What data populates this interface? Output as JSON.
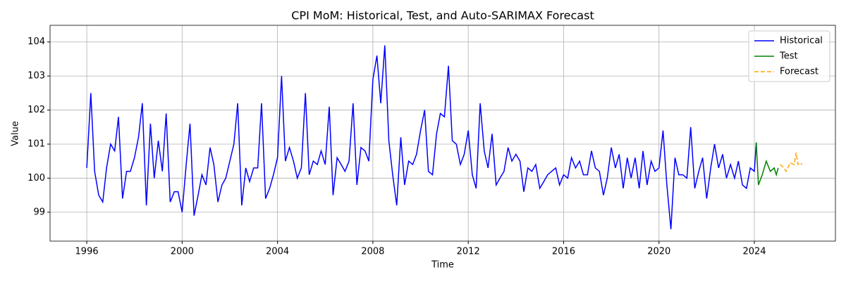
{
  "chart_data": {
    "type": "line",
    "title": "CPI MoM: Historical, Test, and Auto-SARIMAX Forecast",
    "xlabel": "Time",
    "ylabel": "Value",
    "xlim": [
      1994.46,
      2027.4
    ],
    "ylim": [
      98.15,
      104.49
    ],
    "xticks": [
      1996,
      2000,
      2004,
      2008,
      2012,
      2016,
      2020,
      2024
    ],
    "yticks": [
      99,
      100,
      101,
      102,
      103,
      104
    ],
    "grid": true,
    "legend": "upper right",
    "series": [
      {
        "name": "Historical",
        "color": "#0000ff",
        "linestyle": "solid",
        "x": [
          1996,
          1996.17,
          1996.33,
          1996.5,
          1996.67,
          1996.83,
          1997,
          1997.17,
          1997.33,
          1997.5,
          1997.67,
          1997.83,
          1998,
          1998.17,
          1998.33,
          1998.5,
          1998.67,
          1998.83,
          1999,
          1999.17,
          1999.33,
          1999.5,
          1999.67,
          1999.83,
          2000,
          2000.17,
          2000.33,
          2000.5,
          2000.67,
          2000.83,
          2001,
          2001.17,
          2001.33,
          2001.5,
          2001.67,
          2001.83,
          2002,
          2002.17,
          2002.33,
          2002.5,
          2002.67,
          2002.83,
          2003,
          2003.17,
          2003.33,
          2003.5,
          2003.67,
          2003.83,
          2004,
          2004.17,
          2004.33,
          2004.5,
          2004.67,
          2004.83,
          2005,
          2005.17,
          2005.33,
          2005.5,
          2005.67,
          2005.83,
          2006,
          2006.17,
          2006.33,
          2006.5,
          2006.67,
          2006.83,
          2007,
          2007.17,
          2007.33,
          2007.5,
          2007.67,
          2007.83,
          2008,
          2008.17,
          2008.33,
          2008.5,
          2008.67,
          2008.83,
          2009,
          2009.17,
          2009.33,
          2009.5,
          2009.67,
          2009.83,
          2010,
          2010.17,
          2010.33,
          2010.5,
          2010.67,
          2010.83,
          2011,
          2011.17,
          2011.33,
          2011.5,
          2011.67,
          2011.83,
          2012,
          2012.17,
          2012.33,
          2012.5,
          2012.67,
          2012.83,
          2013,
          2013.17,
          2013.33,
          2013.5,
          2013.67,
          2013.83,
          2014,
          2014.17,
          2014.33,
          2014.5,
          2014.67,
          2014.83,
          2015,
          2015.17,
          2015.33,
          2015.5,
          2015.67,
          2015.83,
          2016,
          2016.17,
          2016.33,
          2016.5,
          2016.67,
          2016.83,
          2017,
          2017.17,
          2017.33,
          2017.5,
          2017.67,
          2017.83,
          2018,
          2018.17,
          2018.33,
          2018.5,
          2018.67,
          2018.83,
          2019,
          2019.17,
          2019.33,
          2019.5,
          2019.67,
          2019.83,
          2020,
          2020.17,
          2020.33,
          2020.5,
          2020.67,
          2020.83,
          2021,
          2021.17,
          2021.33,
          2021.5,
          2021.67,
          2021.83,
          2022,
          2022.17,
          2022.33,
          2022.5,
          2022.67,
          2022.83,
          2023,
          2023.17,
          2023.33,
          2023.5,
          2023.67,
          2023.83,
          2024,
          2024.08
        ],
        "values": [
          100.3,
          102.5,
          100.2,
          99.5,
          99.3,
          100.3,
          101.0,
          100.8,
          101.8,
          99.4,
          100.2,
          100.2,
          100.6,
          101.2,
          102.2,
          99.2,
          101.6,
          100.0,
          101.1,
          100.2,
          101.9,
          99.3,
          99.6,
          99.6,
          99.0,
          100.4,
          101.6,
          98.9,
          99.5,
          100.1,
          99.8,
          100.9,
          100.4,
          99.3,
          99.8,
          100.0,
          100.5,
          101.0,
          102.2,
          99.2,
          100.3,
          99.9,
          100.3,
          100.3,
          102.2,
          99.4,
          99.7,
          100.1,
          100.6,
          103.0,
          100.5,
          100.9,
          100.5,
          100.0,
          100.3,
          102.5,
          100.1,
          100.5,
          100.4,
          100.8,
          100.4,
          102.1,
          99.5,
          100.6,
          100.4,
          100.2,
          100.5,
          102.2,
          99.8,
          100.9,
          100.8,
          100.5,
          102.9,
          103.6,
          102.2,
          103.9,
          101.1,
          100.1,
          99.2,
          101.2,
          99.8,
          100.5,
          100.4,
          100.7,
          101.4,
          102.0,
          100.2,
          100.1,
          101.3,
          101.9,
          101.8,
          103.3,
          101.1,
          101.0,
          100.4,
          100.7,
          101.4,
          100.1,
          99.7,
          102.2,
          100.8,
          100.3,
          101.3,
          99.8,
          100.0,
          100.2,
          100.9,
          100.5,
          100.7,
          100.5,
          99.6,
          100.3,
          100.2,
          100.4,
          99.7,
          99.9,
          100.1,
          100.2,
          100.3,
          99.8,
          100.1,
          100.0,
          100.6,
          100.3,
          100.5,
          100.1,
          100.1,
          100.8,
          100.3,
          100.2,
          99.5,
          100.0,
          100.9,
          100.3,
          100.7,
          99.7,
          100.6,
          100.0,
          100.6,
          99.7,
          100.8,
          99.8,
          100.5,
          100.2,
          100.3,
          101.4,
          99.8,
          98.5,
          100.6,
          100.1,
          100.1,
          100.0,
          101.5,
          99.7,
          100.2,
          100.6,
          99.4,
          100.3,
          101.0,
          100.3,
          100.7,
          100.0,
          100.4,
          100.0,
          100.5,
          99.8,
          99.7,
          100.3,
          100.2,
          101.05
        ]
      },
      {
        "name": "Test",
        "color": "#008000",
        "linestyle": "solid",
        "x": [
          2024.08,
          2024.17,
          2024.33,
          2024.5,
          2024.67,
          2024.83,
          2024.92,
          2025
        ],
        "values": [
          101.05,
          99.8,
          100.1,
          100.5,
          100.2,
          100.3,
          100.1,
          100.3
        ]
      },
      {
        "name": "Forecast",
        "color": "#ffa500",
        "linestyle": "dashed",
        "x": [
          2025.08,
          2025.25,
          2025.33,
          2025.5,
          2025.67,
          2025.75,
          2025.83,
          2025.92,
          2026
        ],
        "values": [
          100.4,
          100.3,
          100.2,
          100.45,
          100.4,
          100.75,
          100.4,
          100.45,
          100.4
        ]
      }
    ]
  }
}
